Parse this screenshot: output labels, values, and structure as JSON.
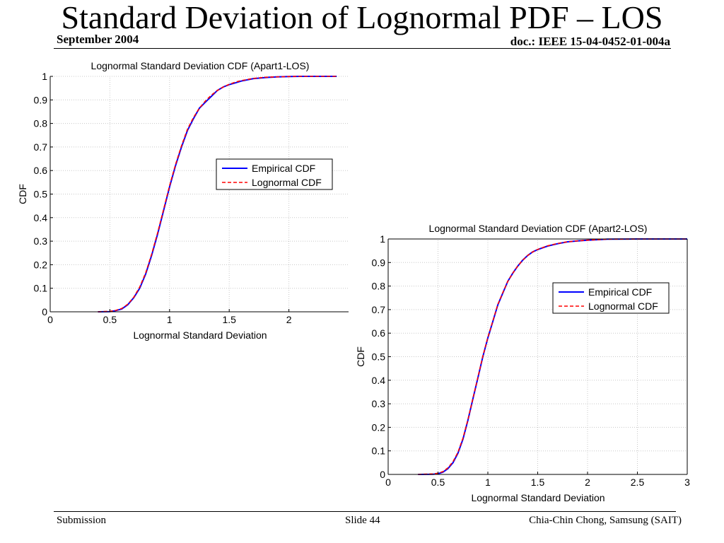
{
  "slide": {
    "title": "Standard Deviation of Lognormal PDF – LOS",
    "date": "September 2004",
    "doc": "doc.: IEEE 15-04-0452-01-004a",
    "footer_left": "Submission",
    "footer_center": "Slide 44",
    "footer_right": "Chia-Chin Chong, Samsung (SAIT)"
  },
  "colors": {
    "empirical": "#0000ff",
    "lognormal": "#ff0000",
    "grid": "#c8c8c8",
    "axes": "#000000"
  },
  "chart_data": [
    {
      "type": "line",
      "title": "Lognormal Standard Deviation CDF (Apart1-LOS)",
      "xlabel": "Lognormal Standard Deviation",
      "ylabel": "CDF",
      "xlim": [
        0,
        2.5
      ],
      "ylim": [
        0,
        1
      ],
      "xticks": [
        0,
        0.5,
        1,
        1.5,
        2
      ],
      "xtick_labels": [
        "0",
        "0.5",
        "1",
        "1.5",
        "2"
      ],
      "yticks": [
        0,
        0.1,
        0.2,
        0.3,
        0.4,
        0.5,
        0.6,
        0.7,
        0.8,
        0.9,
        1
      ],
      "ytick_labels": [
        "0",
        "0.1",
        "0.2",
        "0.3",
        "0.4",
        "0.5",
        "0.6",
        "0.7",
        "0.8",
        "0.9",
        "1"
      ],
      "grid": true,
      "legend_position": "middle-right",
      "series": [
        {
          "name": "Empirical CDF",
          "style": "solid",
          "x": [
            0.4,
            0.5,
            0.55,
            0.6,
            0.65,
            0.7,
            0.75,
            0.8,
            0.85,
            0.9,
            0.95,
            1.0,
            1.05,
            1.1,
            1.15,
            1.2,
            1.25,
            1.3,
            1.35,
            1.4,
            1.45,
            1.5,
            1.55,
            1.6,
            1.7,
            1.8,
            1.9,
            2.0,
            2.1,
            2.2,
            2.3,
            2.4
          ],
          "y": [
            0,
            0.001,
            0.005,
            0.012,
            0.03,
            0.06,
            0.1,
            0.16,
            0.24,
            0.33,
            0.43,
            0.53,
            0.62,
            0.7,
            0.77,
            0.82,
            0.865,
            0.89,
            0.915,
            0.94,
            0.955,
            0.965,
            0.972,
            0.98,
            0.99,
            0.995,
            0.998,
            0.999,
            1,
            1,
            1,
            1
          ]
        },
        {
          "name": "Lognormal CDF",
          "style": "dashed",
          "x": [
            0.4,
            0.5,
            0.55,
            0.6,
            0.65,
            0.7,
            0.75,
            0.8,
            0.85,
            0.9,
            0.95,
            1.0,
            1.05,
            1.1,
            1.15,
            1.2,
            1.25,
            1.3,
            1.35,
            1.4,
            1.45,
            1.5,
            1.55,
            1.6,
            1.7,
            1.8,
            1.9,
            2.0,
            2.1,
            2.2,
            2.3,
            2.4
          ],
          "y": [
            0,
            0.002,
            0.006,
            0.014,
            0.032,
            0.062,
            0.105,
            0.165,
            0.245,
            0.335,
            0.435,
            0.535,
            0.625,
            0.705,
            0.775,
            0.825,
            0.865,
            0.895,
            0.92,
            0.94,
            0.955,
            0.966,
            0.975,
            0.982,
            0.991,
            0.996,
            0.998,
            0.999,
            1,
            1,
            1,
            1
          ]
        }
      ]
    },
    {
      "type": "line",
      "title": "Lognormal Standard Deviation CDF (Apart2-LOS)",
      "xlabel": "Lognormal Standard Deviation",
      "ylabel": "CDF",
      "xlim": [
        0,
        3
      ],
      "ylim": [
        0,
        1
      ],
      "xticks": [
        0,
        0.5,
        1,
        1.5,
        2,
        2.5,
        3
      ],
      "xtick_labels": [
        "0",
        "0.5",
        "1",
        "1.5",
        "2",
        "2.5",
        "3"
      ],
      "yticks": [
        0,
        0.1,
        0.2,
        0.3,
        0.4,
        0.5,
        0.6,
        0.7,
        0.8,
        0.9,
        1
      ],
      "ytick_labels": [
        "0",
        "0.1",
        "0.2",
        "0.3",
        "0.4",
        "0.5",
        "0.6",
        "0.7",
        "0.8",
        "0.9",
        "1"
      ],
      "grid": true,
      "legend_position": "top-right",
      "series": [
        {
          "name": "Empirical CDF",
          "style": "solid",
          "x": [
            0.3,
            0.45,
            0.5,
            0.55,
            0.6,
            0.65,
            0.7,
            0.75,
            0.8,
            0.85,
            0.9,
            0.95,
            1.0,
            1.05,
            1.1,
            1.15,
            1.2,
            1.25,
            1.3,
            1.35,
            1.4,
            1.45,
            1.5,
            1.6,
            1.7,
            1.8,
            1.9,
            2.0,
            2.2,
            2.5,
            3.0
          ],
          "y": [
            0,
            0.001,
            0.003,
            0.01,
            0.025,
            0.05,
            0.09,
            0.15,
            0.23,
            0.32,
            0.41,
            0.5,
            0.58,
            0.65,
            0.72,
            0.77,
            0.82,
            0.855,
            0.885,
            0.91,
            0.93,
            0.945,
            0.955,
            0.97,
            0.98,
            0.988,
            0.992,
            0.995,
            0.999,
            1,
            1
          ]
        },
        {
          "name": "Lognormal CDF",
          "style": "dashed",
          "x": [
            0.3,
            0.45,
            0.5,
            0.55,
            0.6,
            0.65,
            0.7,
            0.75,
            0.8,
            0.85,
            0.9,
            0.95,
            1.0,
            1.05,
            1.1,
            1.15,
            1.2,
            1.25,
            1.3,
            1.35,
            1.4,
            1.45,
            1.5,
            1.6,
            1.7,
            1.8,
            1.9,
            2.0,
            2.2,
            2.5,
            3.0
          ],
          "y": [
            0,
            0.002,
            0.005,
            0.012,
            0.028,
            0.054,
            0.094,
            0.154,
            0.232,
            0.322,
            0.412,
            0.502,
            0.582,
            0.652,
            0.722,
            0.772,
            0.82,
            0.855,
            0.885,
            0.91,
            0.93,
            0.945,
            0.956,
            0.971,
            0.981,
            0.988,
            0.992,
            0.995,
            0.999,
            1,
            1
          ]
        }
      ]
    }
  ]
}
